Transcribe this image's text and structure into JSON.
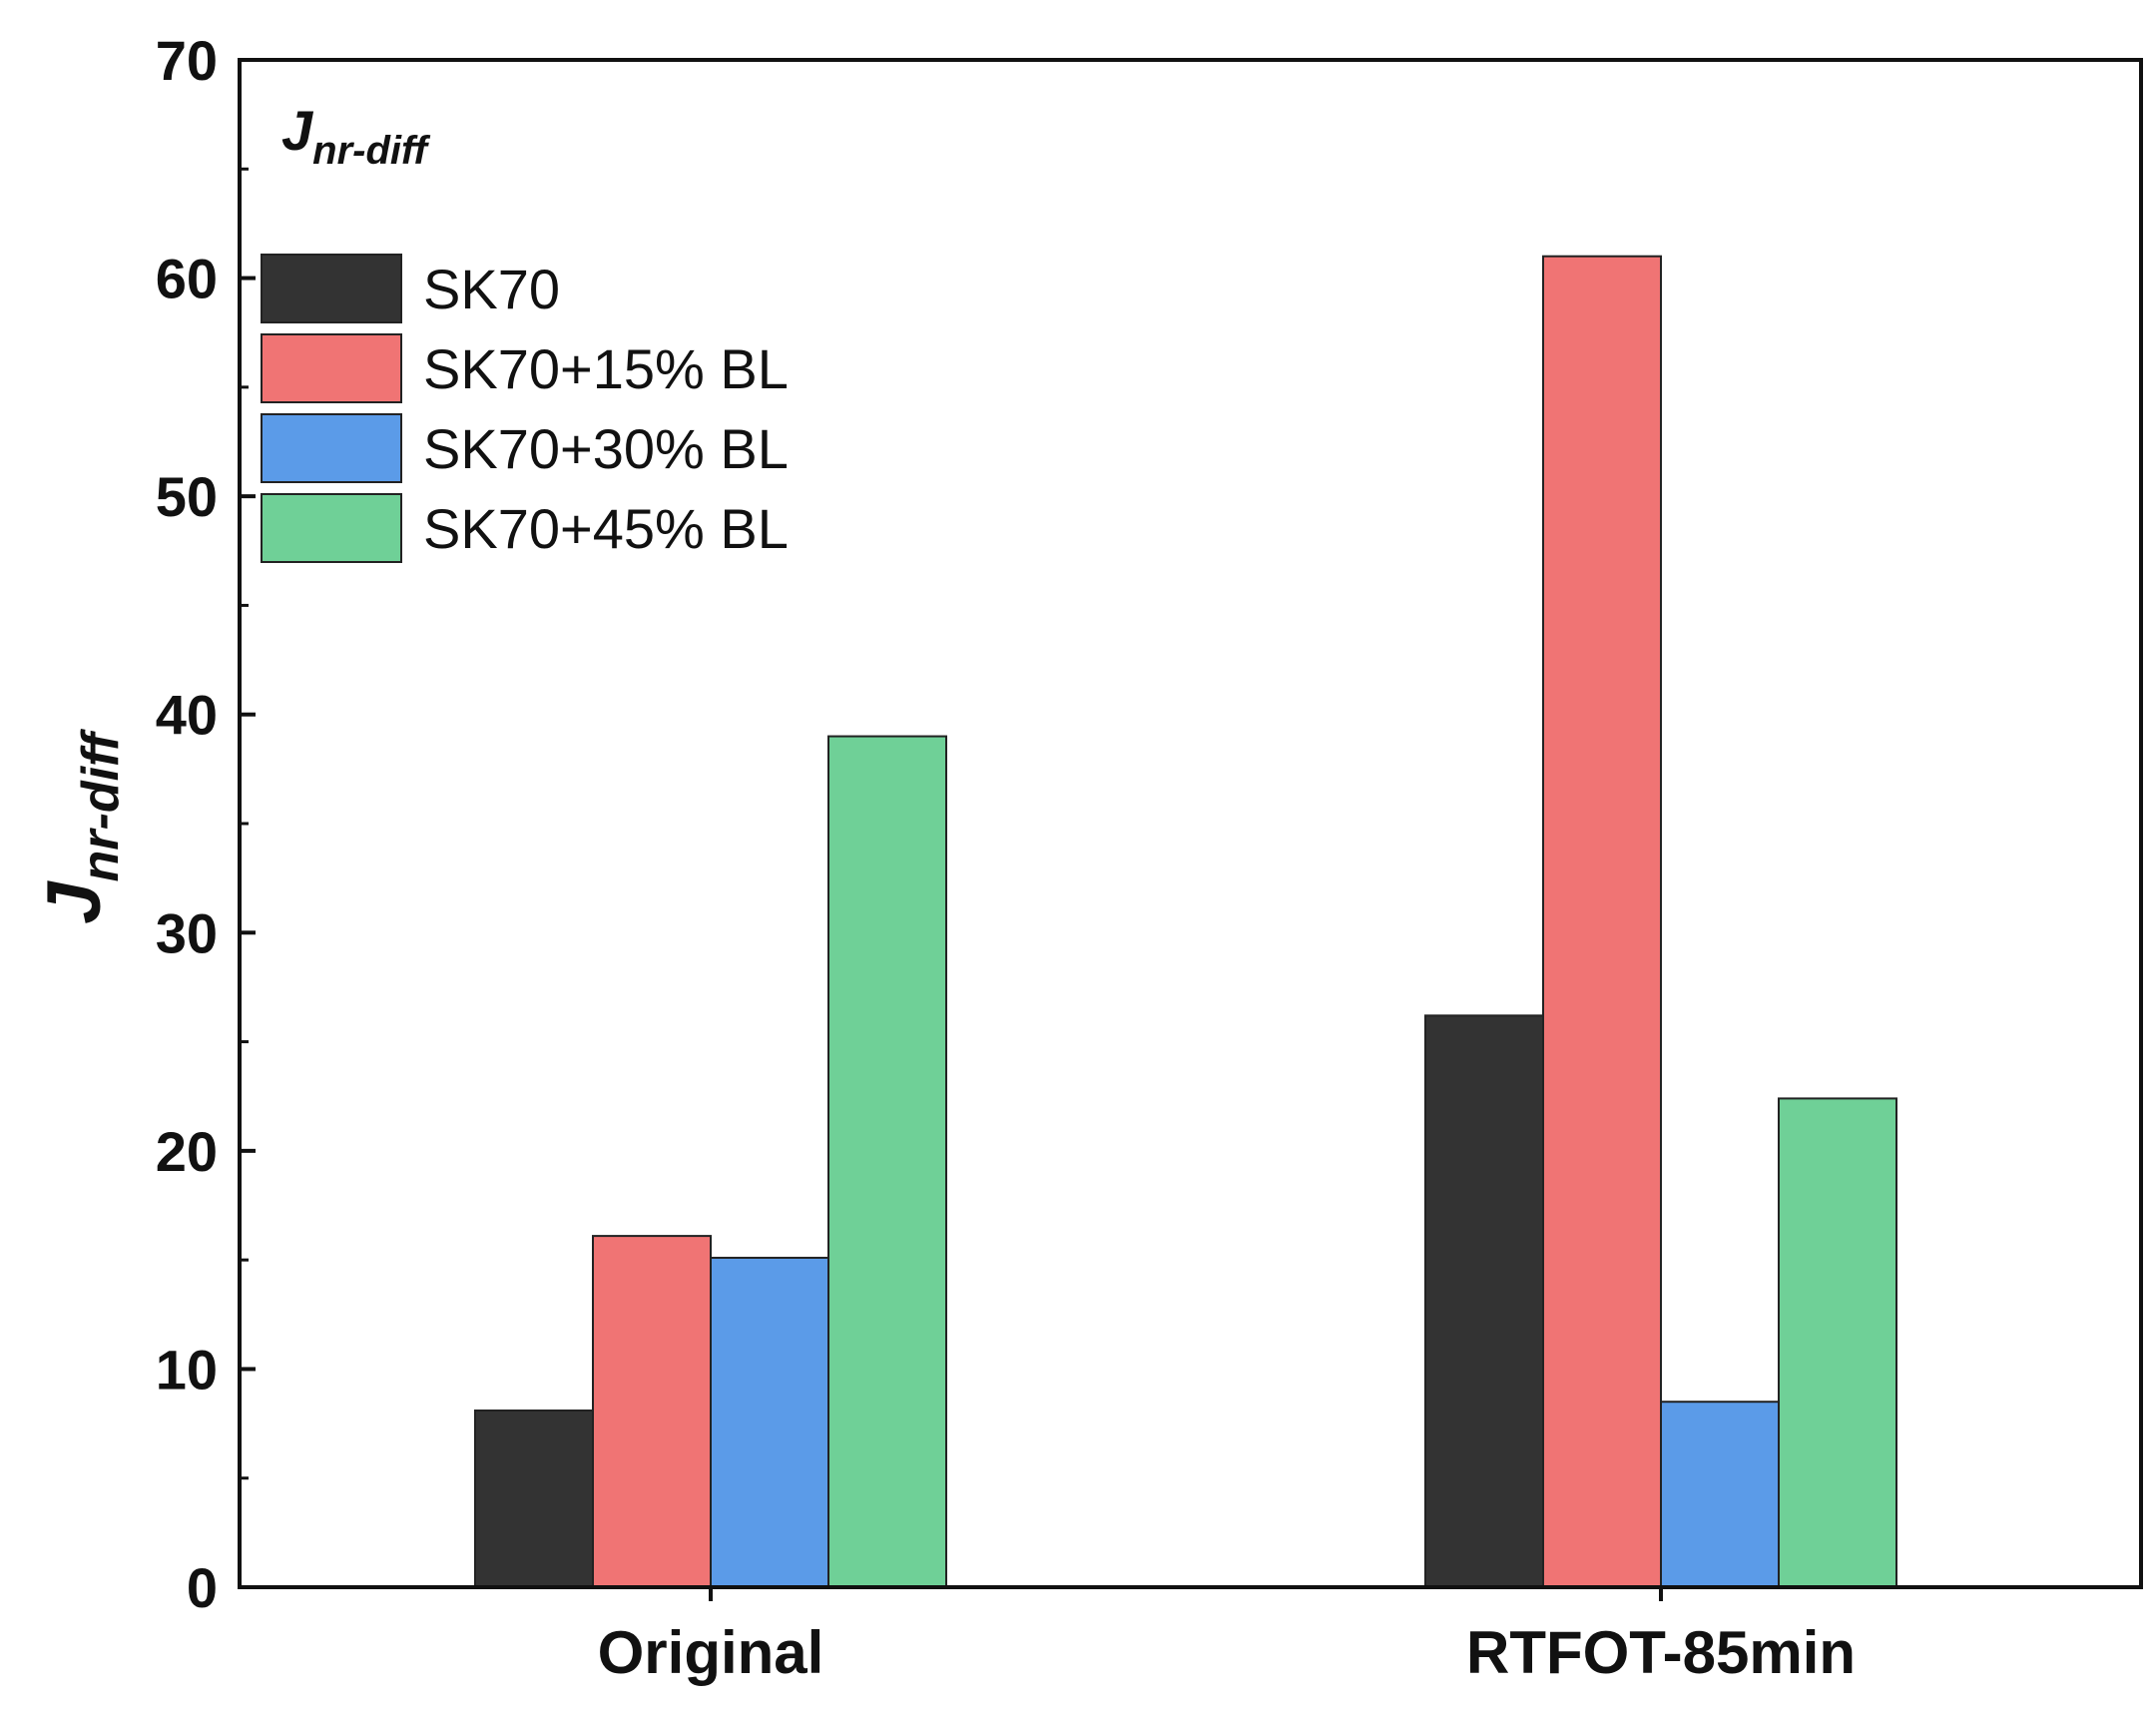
{
  "chart_data": {
    "type": "bar",
    "title": "",
    "annotation": {
      "main": "J",
      "sub": "nr-diff"
    },
    "xlabel": "",
    "ylabel": {
      "main": "J",
      "sub": "nr-diff"
    },
    "ylim": [
      0,
      70
    ],
    "yticks": [
      0,
      10,
      20,
      30,
      40,
      50,
      60,
      70
    ],
    "categories": [
      "Original",
      "RTFOT-85min"
    ],
    "legend_position": "top-left",
    "series": [
      {
        "name": "SK70",
        "color": "#333333",
        "values": [
          8.1,
          26.2
        ]
      },
      {
        "name": "SK70+15% BL",
        "color": "#f07474",
        "values": [
          16.1,
          61.0
        ]
      },
      {
        "name": "SK70+30% BL",
        "color": "#5b9be8",
        "values": [
          15.1,
          8.5
        ]
      },
      {
        "name": "SK70+45% BL",
        "color": "#6fd097",
        "values": [
          39.0,
          22.4
        ]
      }
    ]
  }
}
